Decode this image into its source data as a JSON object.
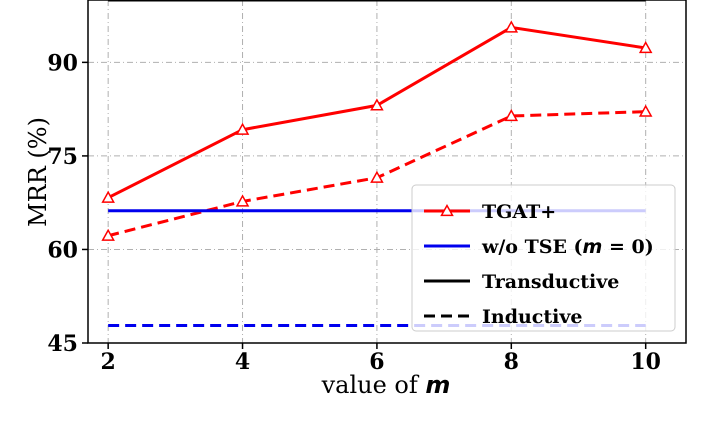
{
  "chart_data": {
    "type": "line",
    "xlabel_text": "value of ",
    "xlabel_var": "m",
    "ylabel": "MRR (%)",
    "x": [
      2,
      4,
      6,
      8,
      10
    ],
    "xlim": [
      1.7,
      10.6
    ],
    "ylim": [
      45,
      100
    ],
    "yticks": [
      45,
      60,
      75,
      90
    ],
    "grid": true,
    "legend_position": "bottom-right",
    "series": [
      {
        "name": "TGAT+",
        "role": "transductive",
        "color": "#ff0000",
        "style": "solid",
        "marker": "triangle",
        "values": [
          68.3,
          79.2,
          83.1,
          95.6,
          92.3
        ]
      },
      {
        "name": "TGAT+",
        "role": "inductive",
        "color": "#ff0000",
        "style": "dashed",
        "marker": "triangle",
        "values": [
          62.2,
          67.7,
          71.5,
          81.4,
          82.1
        ]
      },
      {
        "name": "w/o TSE (m = 0)",
        "role": "transductive",
        "color": "#0000ee",
        "style": "solid",
        "values": [
          66.2,
          66.2,
          66.2,
          66.2,
          66.2
        ]
      },
      {
        "name": "w/o TSE (m = 0)",
        "role": "inductive",
        "color": "#0000ee",
        "style": "dashed",
        "values": [
          47.8,
          47.8,
          47.8,
          47.8,
          47.8
        ]
      },
      {
        "name": "",
        "role": "reference",
        "color": "#000000",
        "style": "solid",
        "values": [
          100,
          100,
          100,
          100,
          100
        ]
      }
    ],
    "legend": [
      {
        "label": "TGAT+",
        "color": "#ff0000",
        "style": "solid",
        "marker": "triangle"
      },
      {
        "label_prefix": "w/o TSE (",
        "label_var": "m",
        "label_suffix": " = 0)",
        "color": "#0000ee",
        "style": "solid"
      },
      {
        "label": "Transductive",
        "color": "#000000",
        "style": "solid"
      },
      {
        "label": "Inductive",
        "color": "#000000",
        "style": "dashed"
      }
    ]
  }
}
